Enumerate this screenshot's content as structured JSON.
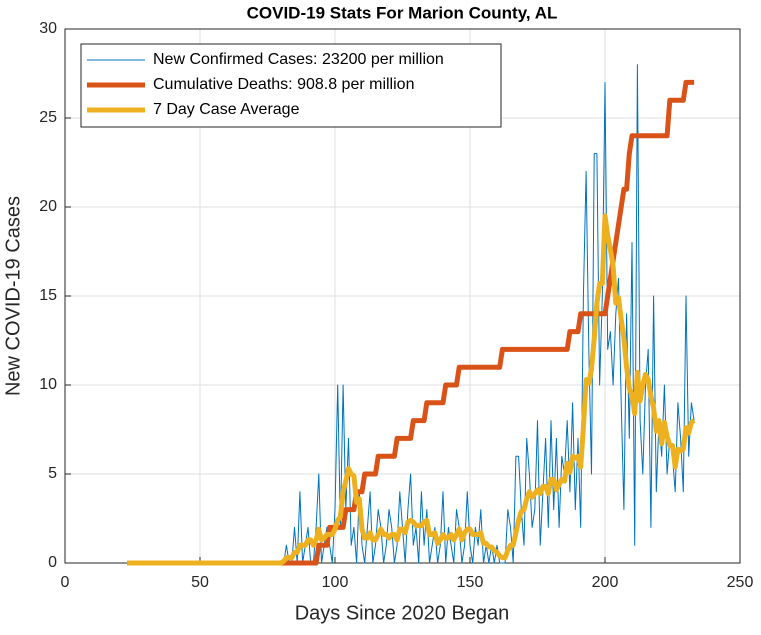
{
  "chart_data": {
    "type": "line",
    "title": "COVID-19 Stats For Marion County, AL",
    "xlabel": "Days Since 2020 Began",
    "ylabel": "New COVID-19 Cases",
    "xlim": [
      0,
      250
    ],
    "xticks": [
      0,
      50,
      100,
      150,
      200,
      250
    ],
    "ylim": [
      0,
      30
    ],
    "yticks": [
      0,
      5,
      10,
      15,
      20,
      25,
      30
    ],
    "grid": true,
    "legend": "upper left",
    "x": [
      23,
      24,
      25,
      26,
      27,
      28,
      29,
      30,
      31,
      32,
      33,
      34,
      35,
      36,
      37,
      38,
      39,
      40,
      41,
      42,
      43,
      44,
      45,
      46,
      47,
      48,
      49,
      50,
      51,
      52,
      53,
      54,
      55,
      56,
      57,
      58,
      59,
      60,
      61,
      62,
      63,
      64,
      65,
      66,
      67,
      68,
      69,
      70,
      71,
      72,
      73,
      74,
      75,
      76,
      77,
      78,
      79,
      80,
      81,
      82,
      83,
      84,
      85,
      86,
      87,
      88,
      89,
      90,
      91,
      92,
      93,
      94,
      95,
      96,
      97,
      98,
      99,
      100,
      101,
      102,
      103,
      104,
      105,
      106,
      107,
      108,
      109,
      110,
      111,
      112,
      113,
      114,
      115,
      116,
      117,
      118,
      119,
      120,
      121,
      122,
      123,
      124,
      125,
      126,
      127,
      128,
      129,
      130,
      131,
      132,
      133,
      134,
      135,
      136,
      137,
      138,
      139,
      140,
      141,
      142,
      143,
      144,
      145,
      146,
      147,
      148,
      149,
      150,
      151,
      152,
      153,
      154,
      155,
      156,
      157,
      158,
      159,
      160,
      161,
      162,
      163,
      164,
      165,
      166,
      167,
      168,
      169,
      170,
      171,
      172,
      173,
      174,
      175,
      176,
      177,
      178,
      179,
      180,
      181,
      182,
      183,
      184,
      185,
      186,
      187,
      188,
      189,
      190,
      191,
      192,
      193,
      194,
      195,
      196,
      197,
      198,
      199,
      200,
      201,
      202,
      203,
      204,
      205,
      206,
      207,
      208,
      209,
      210,
      211,
      212,
      213,
      214,
      215,
      216,
      217,
      218,
      219,
      220,
      221,
      222,
      223,
      224,
      225,
      226,
      227,
      228,
      229,
      230,
      231,
      232,
      233
    ],
    "series": [
      {
        "name": "New Confirmed Cases: 23200 per million",
        "color": "#0072bd",
        "width": 1,
        "values": [
          0,
          0,
          0,
          0,
          0,
          0,
          0,
          0,
          0,
          0,
          0,
          0,
          0,
          0,
          0,
          0,
          0,
          0,
          0,
          0,
          0,
          0,
          0,
          0,
          0,
          0,
          0,
          0,
          0,
          0,
          0,
          0,
          0,
          0,
          0,
          0,
          0,
          0,
          0,
          0,
          0,
          0,
          0,
          0,
          0,
          0,
          0,
          0,
          0,
          0,
          0,
          0,
          0,
          0,
          0,
          0,
          0,
          0,
          0,
          1,
          0,
          0,
          2,
          0,
          4,
          0,
          1,
          2,
          0,
          0,
          2,
          5,
          0,
          1,
          2,
          1,
          0,
          3,
          10,
          2,
          10,
          3,
          7,
          1,
          2,
          0,
          4,
          1,
          0,
          2,
          4,
          0,
          1,
          3,
          2,
          0,
          1,
          3,
          2,
          0,
          1,
          4,
          2,
          0,
          3,
          5,
          1,
          2,
          0,
          4,
          1,
          3,
          0,
          1,
          2,
          0,
          1,
          4,
          0,
          2,
          1,
          0,
          3,
          2,
          0,
          1,
          4,
          1,
          0,
          2,
          1,
          3,
          0,
          1,
          0,
          1,
          0,
          1,
          0,
          0,
          0,
          3,
          2,
          0,
          6,
          6,
          3,
          1,
          7,
          5,
          2,
          3,
          8,
          1,
          4,
          7,
          2,
          8,
          3,
          7,
          2,
          6,
          5,
          8,
          4,
          9,
          3,
          7,
          2,
          15,
          22,
          12,
          5,
          23,
          23,
          10,
          15,
          27,
          12,
          13,
          10,
          14,
          16,
          9,
          3,
          14,
          7,
          18,
          1,
          28,
          8,
          5,
          10,
          12,
          2,
          15,
          4,
          8,
          6,
          10,
          5,
          7,
          6,
          4,
          9,
          7,
          4,
          15,
          6,
          9,
          8
        ]
      },
      {
        "name": "Cumulative Deaths: 908.8 per million",
        "color": "#d95319",
        "width": 5,
        "values": [
          0,
          0,
          0,
          0,
          0,
          0,
          0,
          0,
          0,
          0,
          0,
          0,
          0,
          0,
          0,
          0,
          0,
          0,
          0,
          0,
          0,
          0,
          0,
          0,
          0,
          0,
          0,
          0,
          0,
          0,
          0,
          0,
          0,
          0,
          0,
          0,
          0,
          0,
          0,
          0,
          0,
          0,
          0,
          0,
          0,
          0,
          0,
          0,
          0,
          0,
          0,
          0,
          0,
          0,
          0,
          0,
          0,
          0,
          0,
          0,
          0,
          0,
          0,
          0,
          0,
          0,
          0,
          0,
          0,
          0,
          0,
          1,
          1,
          1,
          1,
          2,
          2,
          2,
          2,
          2,
          2,
          3,
          3,
          3,
          3,
          4,
          4,
          4,
          5,
          5,
          5,
          5,
          5,
          6,
          6,
          6,
          6,
          6,
          6,
          6,
          7,
          7,
          7,
          7,
          7,
          7,
          8,
          8,
          8,
          8,
          8,
          9,
          9,
          9,
          9,
          9,
          9,
          9,
          10,
          10,
          10,
          10,
          10,
          11,
          11,
          11,
          11,
          11,
          11,
          11,
          11,
          11,
          11,
          11,
          11,
          11,
          11,
          11,
          11,
          12,
          12,
          12,
          12,
          12,
          12,
          12,
          12,
          12,
          12,
          12,
          12,
          12,
          12,
          12,
          12,
          12,
          12,
          12,
          12,
          12,
          12,
          12,
          12,
          12,
          13,
          13,
          13,
          13,
          14,
          14,
          14,
          14,
          14,
          14,
          14,
          14,
          14,
          14,
          15,
          16,
          17,
          18,
          19,
          20,
          21,
          21,
          23,
          24,
          24,
          24,
          24,
          24,
          24,
          24,
          24,
          24,
          24,
          24,
          24,
          24,
          24,
          26,
          26,
          26,
          26,
          26,
          26,
          27,
          27,
          27,
          27
        ]
      },
      {
        "name": "7 Day Case Average",
        "color": "#edb120",
        "width": 5,
        "values": [
          0,
          0,
          0,
          0,
          0,
          0,
          0,
          0,
          0,
          0,
          0,
          0,
          0,
          0,
          0,
          0,
          0,
          0,
          0,
          0,
          0,
          0,
          0,
          0,
          0,
          0,
          0,
          0,
          0,
          0,
          0,
          0,
          0,
          0,
          0,
          0,
          0,
          0,
          0,
          0,
          0,
          0,
          0,
          0,
          0,
          0,
          0,
          0,
          0,
          0,
          0,
          0,
          0,
          0,
          0,
          0,
          0,
          0,
          0.1,
          0.3,
          0.3,
          0.3,
          0.6,
          0.6,
          1,
          1,
          1,
          1.3,
          1.3,
          1,
          1.3,
          1.9,
          1.3,
          1.4,
          1.6,
          1.6,
          1.6,
          1.9,
          2.4,
          2.6,
          4,
          4.6,
          5.3,
          5,
          4.9,
          3.4,
          3.6,
          1.9,
          1.4,
          1.4,
          1.7,
          1.3,
          1.3,
          1.6,
          1.9,
          1.6,
          1.6,
          1.4,
          1.6,
          1.6,
          1.3,
          1.9,
          1.9,
          1.7,
          2.3,
          2.4,
          2.3,
          2.1,
          2.1,
          2.1,
          2.3,
          2.4,
          1.6,
          1.6,
          1.7,
          1.1,
          1.3,
          1.6,
          1.4,
          1.4,
          1.6,
          1.3,
          1.6,
          1.9,
          1.3,
          1.7,
          1.9,
          1.9,
          1.6,
          1.6,
          1.6,
          1.7,
          1.1,
          1.1,
          0.9,
          0.9,
          0.7,
          0.6,
          0.4,
          0.3,
          0.3,
          0.7,
          1,
          1,
          1.7,
          2.4,
          2.9,
          3,
          3.6,
          4,
          3.7,
          3.9,
          4.1,
          3.9,
          4.3,
          4.3,
          3.9,
          4.7,
          4.7,
          4.1,
          4.4,
          4.7,
          4.6,
          5.6,
          5.1,
          6,
          5.9,
          6,
          5.4,
          7.6,
          10.3,
          10.1,
          10.9,
          12.6,
          14.6,
          15.7,
          15.7,
          19.5,
          18.4,
          17.6,
          16.7,
          14.6,
          14.9,
          13.7,
          12.6,
          11,
          9.8,
          9.4,
          8.4,
          10.7,
          9.1,
          10,
          10.6,
          10.3,
          9.4,
          8.7,
          7.4,
          8,
          6.7,
          7.9,
          7.1,
          6.6,
          6.6,
          5.4,
          6.4,
          6.3,
          6.4,
          7.6,
          7.3,
          7.9,
          8
        ]
      }
    ]
  }
}
